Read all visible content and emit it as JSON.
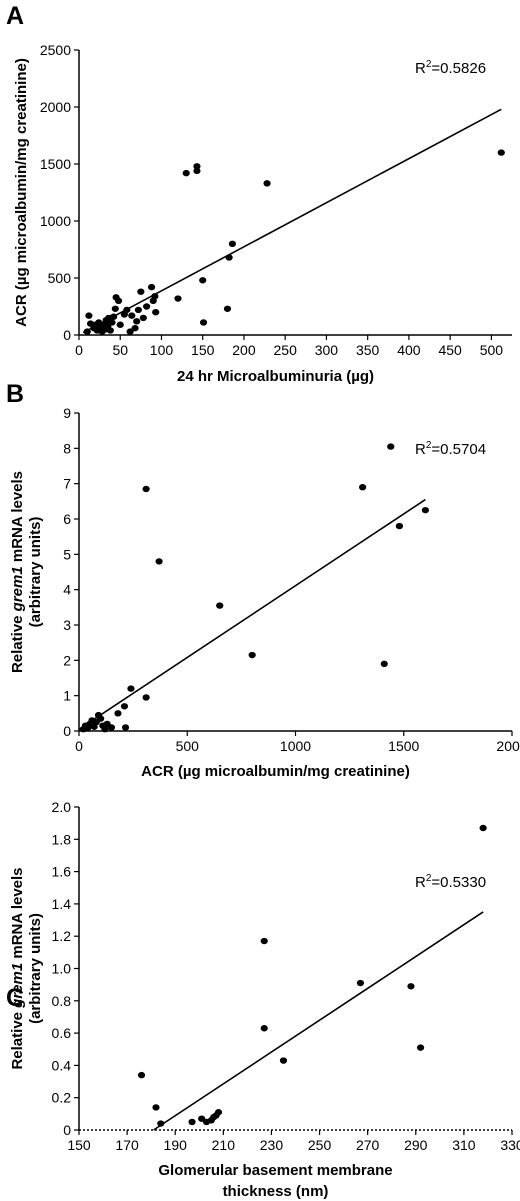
{
  "chart_data": [
    {
      "type": "scatter",
      "panel": "A",
      "xlabel": "24 hr Microalbuminuria (µg)",
      "ylabel": "ACR (µg microalbumin/mg creatinine)",
      "xlim": [
        0,
        525
      ],
      "ylim": [
        0,
        2500
      ],
      "xticks": [
        0,
        50,
        100,
        150,
        200,
        250,
        300,
        350,
        400,
        450,
        500
      ],
      "yticks": [
        0,
        500,
        1000,
        1500,
        2000,
        2500
      ],
      "annotation": "R²=0.5826",
      "trendline": [
        [
          5,
          20
        ],
        [
          512,
          1980
        ]
      ],
      "points": [
        [
          10,
          30
        ],
        [
          12,
          170
        ],
        [
          14,
          100
        ],
        [
          18,
          60
        ],
        [
          20,
          90
        ],
        [
          22,
          40
        ],
        [
          24,
          110
        ],
        [
          26,
          70
        ],
        [
          28,
          30
        ],
        [
          30,
          90
        ],
        [
          32,
          50
        ],
        [
          33,
          130
        ],
        [
          35,
          80
        ],
        [
          36,
          150
        ],
        [
          38,
          40
        ],
        [
          40,
          110
        ],
        [
          42,
          160
        ],
        [
          44,
          230
        ],
        [
          45,
          330
        ],
        [
          48,
          300
        ],
        [
          50,
          90
        ],
        [
          55,
          180
        ],
        [
          58,
          220
        ],
        [
          62,
          30
        ],
        [
          64,
          170
        ],
        [
          68,
          60
        ],
        [
          70,
          120
        ],
        [
          72,
          220
        ],
        [
          75,
          380
        ],
        [
          78,
          150
        ],
        [
          82,
          250
        ],
        [
          88,
          420
        ],
        [
          90,
          300
        ],
        [
          92,
          340
        ],
        [
          93,
          200
        ],
        [
          120,
          320
        ],
        [
          130,
          1420
        ],
        [
          143,
          1440
        ],
        [
          143,
          1480
        ],
        [
          150,
          480
        ],
        [
          151,
          110
        ],
        [
          180,
          230
        ],
        [
          182,
          680
        ],
        [
          186,
          800
        ],
        [
          228,
          1330
        ],
        [
          512,
          1600
        ]
      ]
    },
    {
      "type": "scatter",
      "panel": "B",
      "xlabel": "ACR (µg microalbumin/mg creatinine)",
      "ylabel_line1": "Relative grem1 mRNA levels",
      "ylabel_line1_prefix": "Relative ",
      "ylabel_line1_italic": "grem1",
      "ylabel_line1_suffix": " mRNA levels",
      "ylabel_line2": "(arbitrary units)",
      "xlim": [
        0,
        2000
      ],
      "ylim": [
        0,
        9
      ],
      "xticks": [
        0,
        500,
        1000,
        1500,
        2000
      ],
      "yticks": [
        0,
        1,
        2,
        3,
        4,
        5,
        6,
        7,
        8,
        9
      ],
      "annotation": "R²=0.5704",
      "trendline": [
        [
          0,
          0.05
        ],
        [
          1600,
          6.55
        ]
      ],
      "points": [
        [
          20,
          0.05
        ],
        [
          30,
          0.15
        ],
        [
          40,
          0.08
        ],
        [
          50,
          0.2
        ],
        [
          60,
          0.3
        ],
        [
          70,
          0.12
        ],
        [
          80,
          0.25
        ],
        [
          90,
          0.45
        ],
        [
          100,
          0.35
        ],
        [
          110,
          0.15
        ],
        [
          120,
          0.05
        ],
        [
          130,
          0.2
        ],
        [
          150,
          0.1
        ],
        [
          180,
          0.5
        ],
        [
          210,
          0.7
        ],
        [
          215,
          0.1
        ],
        [
          240,
          1.2
        ],
        [
          310,
          0.95
        ],
        [
          310,
          6.85
        ],
        [
          370,
          4.8
        ],
        [
          650,
          3.55
        ],
        [
          800,
          2.15
        ],
        [
          1310,
          6.9
        ],
        [
          1410,
          1.9
        ],
        [
          1440,
          8.05
        ],
        [
          1480,
          5.8
        ],
        [
          1600,
          6.25
        ]
      ]
    },
    {
      "type": "scatter",
      "panel": "C",
      "xlabel_line1": "Glomerular basement membrane",
      "xlabel_line2": "thickness (nm)",
      "ylabel_line1": "Relative grem1 mRNA levels",
      "ylabel_line1_prefix": "Relative ",
      "ylabel_line1_italic": "grem1",
      "ylabel_line1_suffix": " mRNA levels",
      "ylabel_line2": "(arbitrary units)",
      "xlim": [
        150,
        330
      ],
      "ylim": [
        0,
        2.0
      ],
      "xticks": [
        150,
        170,
        190,
        210,
        230,
        250,
        270,
        290,
        310,
        330
      ],
      "yticks": [
        0,
        0.2,
        0.4,
        0.6,
        0.8,
        1.0,
        1.2,
        1.4,
        1.6,
        1.8,
        2.0
      ],
      "ytick_labels": [
        "0",
        "0.2",
        "0.4",
        "0.6",
        "0.8",
        "1.0",
        "1.2",
        "1.4",
        "1.6",
        "1.8",
        "2.0"
      ],
      "annotation": "R²=0.5330",
      "trendline": [
        [
          181,
          0.0
        ],
        [
          318,
          1.35
        ]
      ],
      "points": [
        [
          176,
          0.34
        ],
        [
          182,
          0.14
        ],
        [
          184,
          0.04
        ],
        [
          197,
          0.05
        ],
        [
          201,
          0.07
        ],
        [
          203,
          0.05
        ],
        [
          205,
          0.06
        ],
        [
          206,
          0.08
        ],
        [
          207,
          0.09
        ],
        [
          208,
          0.11
        ],
        [
          227,
          1.17
        ],
        [
          227,
          0.63
        ],
        [
          235,
          0.43
        ],
        [
          267,
          0.91
        ],
        [
          288,
          0.89
        ],
        [
          292,
          0.51
        ],
        [
          318,
          1.87
        ]
      ]
    }
  ]
}
